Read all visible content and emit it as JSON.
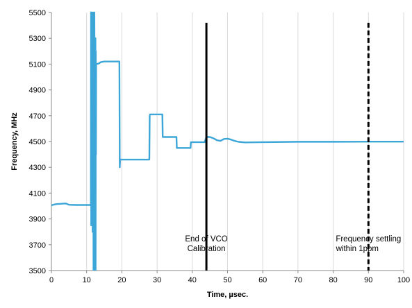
{
  "chart_data": {
    "type": "line",
    "title": "",
    "xlabel": "Time, µsec.",
    "ylabel": "Frequency, MHz",
    "xlim": [
      0,
      100
    ],
    "ylim": [
      3500,
      5500
    ],
    "x_ticks": [
      0,
      10,
      20,
      30,
      40,
      50,
      60,
      70,
      80,
      90,
      100
    ],
    "y_ticks": [
      3500,
      3700,
      3900,
      4100,
      4300,
      4500,
      4700,
      4900,
      5100,
      5300,
      5500
    ],
    "grid": "vertical",
    "line_color": "#3ca6d8",
    "series": [
      {
        "x": [
          0,
          0.5,
          1.5,
          3,
          4,
          5,
          7,
          9,
          11.2,
          11.25,
          11.3,
          11.35,
          11.4,
          11.5,
          11.7,
          11.8,
          11.85,
          11.95,
          12.0,
          12.05,
          12.1,
          12.15,
          12.2,
          12.3,
          12.4,
          12.5,
          12.55,
          12.6,
          12.65,
          12.7,
          12.8,
          13.5,
          14,
          15,
          17,
          19.3,
          19.4,
          19.5,
          19.6,
          19.8,
          22,
          25,
          27.8,
          27.9,
          28.0,
          31.5,
          31.6,
          35.5,
          35.6,
          39.5,
          39.6,
          43.5,
          44,
          45,
          46,
          47,
          48,
          49,
          50,
          51,
          52,
          53,
          55,
          60,
          70,
          80,
          90,
          100
        ],
        "y": [
          4005,
          4010,
          4015,
          4018,
          4020,
          4010,
          4008,
          4008,
          4008,
          5500,
          3850,
          5500,
          3900,
          5500,
          3800,
          4100,
          5500,
          3500,
          5300,
          3600,
          5200,
          3650,
          5500,
          4500,
          3500,
          5300,
          3500,
          5200,
          4400,
          5100,
          5100,
          5105,
          5115,
          5120,
          5120,
          5120,
          4300,
          4360,
          4360,
          4360,
          4360,
          4360,
          4360,
          4700,
          4710,
          4710,
          4535,
          4535,
          4450,
          4450,
          4495,
          4495,
          4535,
          4535,
          4525,
          4510,
          4505,
          4520,
          4522,
          4515,
          4505,
          4498,
          4493,
          4495,
          4498,
          4498,
          4499,
          4499
        ]
      }
    ],
    "annotations": [
      {
        "x": 44,
        "y_from": 3500,
        "y_to": 5420,
        "style": "solid",
        "color": "#000000",
        "lines": [
          "End of VCO",
          "Calibration"
        ]
      },
      {
        "x": 90,
        "y_from": 3500,
        "y_to": 5420,
        "style": "dashed",
        "color": "#000000",
        "lines": [
          "Frequency settling",
          "within 1ppm"
        ]
      }
    ]
  }
}
